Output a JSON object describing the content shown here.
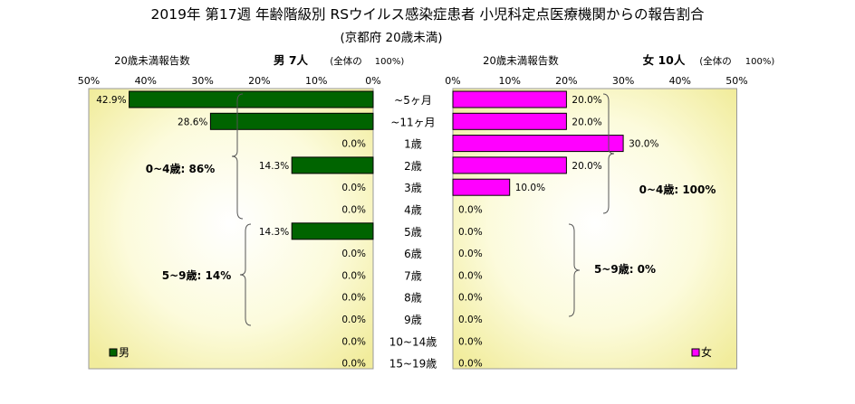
{
  "chart_data": {
    "type": "bar",
    "title": "2019年 第17週 年齢階級別 RSウイルス感染症患者 小児科定点医療機関からの報告割合",
    "subtitle": "(京都府 20歳未満)",
    "categories": [
      "~5ヶ月",
      "~11ヶ月",
      "1歳",
      "2歳",
      "3歳",
      "4歳",
      "5歳",
      "6歳",
      "7歳",
      "8歳",
      "9歳",
      "10~14歳",
      "15~19歳"
    ],
    "axis_ticks": [
      "0%",
      "10%",
      "20%",
      "30%",
      "40%",
      "50%"
    ],
    "xlim": [
      0,
      50
    ],
    "left_panel": {
      "header_label": "20歳未満報告数",
      "header_sex": "男",
      "header_count": "7人",
      "header_note": "(全体の",
      "header_pct": "100%)",
      "legend": "男",
      "color": "#006400",
      "values": [
        42.9,
        28.6,
        0.0,
        14.3,
        0.0,
        0.0,
        14.3,
        0.0,
        0.0,
        0.0,
        0.0,
        0.0,
        0.0
      ],
      "value_labels": [
        "42.9%",
        "28.6%",
        "0.0%",
        "14.3%",
        "0.0%",
        "0.0%",
        "14.3%",
        "0.0%",
        "0.0%",
        "0.0%",
        "0.0%",
        "0.0%",
        "0.0%"
      ],
      "group_labels": [
        "0~4歳: 86%",
        "5~9歳: 14%"
      ]
    },
    "right_panel": {
      "header_label": "20歳未満報告数",
      "header_sex": "女",
      "header_count": "10人",
      "header_note": "(全体の",
      "header_pct": "100%)",
      "legend": "女",
      "color": "#ff00ff",
      "values": [
        20.0,
        20.0,
        30.0,
        20.0,
        10.0,
        0.0,
        0.0,
        0.0,
        0.0,
        0.0,
        0.0,
        0.0,
        0.0
      ],
      "value_labels": [
        "20.0%",
        "20.0%",
        "30.0%",
        "20.0%",
        "10.0%",
        "0.0%",
        "0.0%",
        "0.0%",
        "0.0%",
        "0.0%",
        "0.0%",
        "0.0%",
        "0.0%"
      ],
      "group_labels": [
        "0~4歳: 100%",
        "5~9歳: 0%"
      ]
    }
  }
}
